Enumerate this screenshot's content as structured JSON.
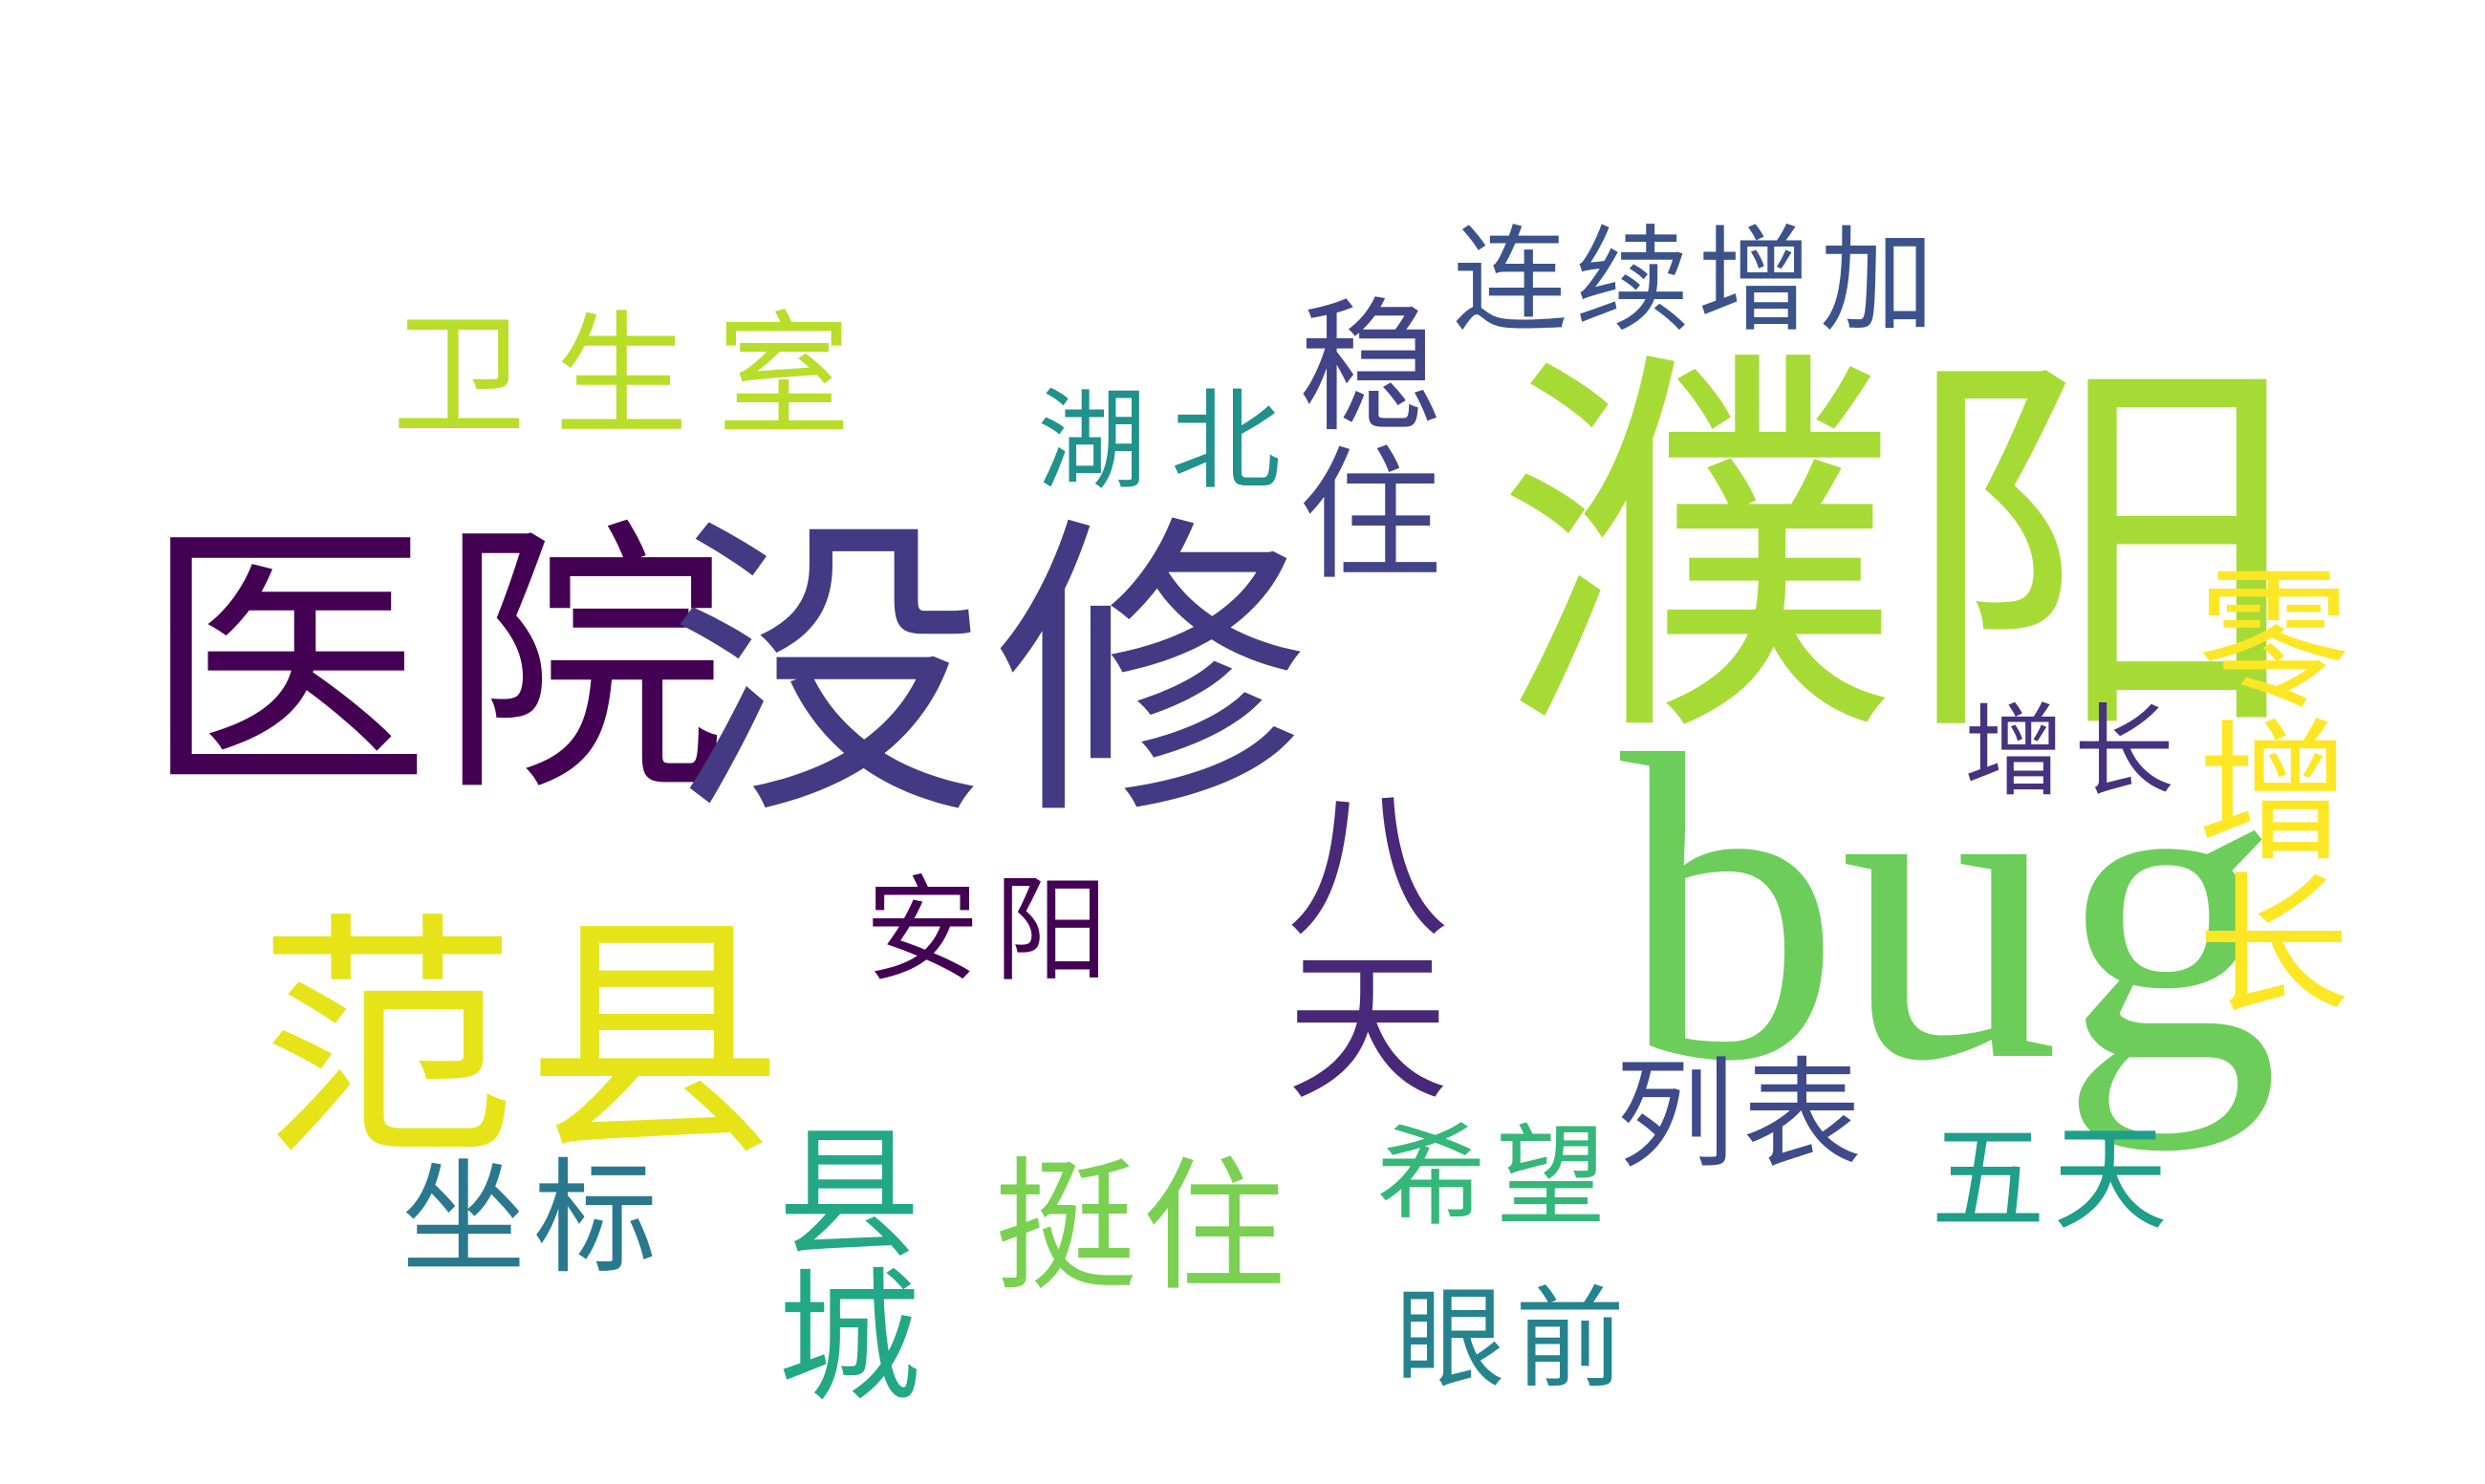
{
  "words": {
    "yiyuan": {
      "text": "医院",
      "color": "#440154"
    },
    "meixiu": {
      "text": "没修",
      "color": "#443a83"
    },
    "puyang": {
      "text": "濮阳",
      "color": "#a6db36"
    },
    "bug": {
      "text": "bug",
      "color": "#6ccd5a"
    },
    "fanxian": {
      "text": "范县",
      "color": "#e6e419"
    },
    "weisheng": {
      "text": "卫生室",
      "color": "#b8de29"
    },
    "lianxu": {
      "text": "连续增加",
      "color": "#3b528b"
    },
    "wenzhu": {
      "text": "稳住",
      "color": "#414487"
    },
    "hubei": {
      "text": "湖北",
      "color": "#21918c"
    },
    "batian": {
      "text": "八天",
      "color": "#482878"
    },
    "anyang": {
      "text": "安阳",
      "color": "#440154"
    },
    "zengzhang": {
      "text": "增长",
      "color": "#46327e"
    },
    "lingzeng": {
      "text": "零增长",
      "color": "#fde725"
    },
    "liebiao": {
      "text": "列表",
      "color": "#3e4a89"
    },
    "wutian": {
      "text": "五天",
      "color": "#1f9e89"
    },
    "xiwang": {
      "text": "希望",
      "color": "#35b779"
    },
    "yanqian": {
      "text": "眼前",
      "color": "#25838e"
    },
    "tingzhu": {
      "text": "挺住",
      "color": "#7ad151"
    },
    "xiancheng": {
      "text": "县城",
      "color": "#22a884"
    },
    "zuobiao": {
      "text": "坐标",
      "color": "#2a788e"
    }
  }
}
